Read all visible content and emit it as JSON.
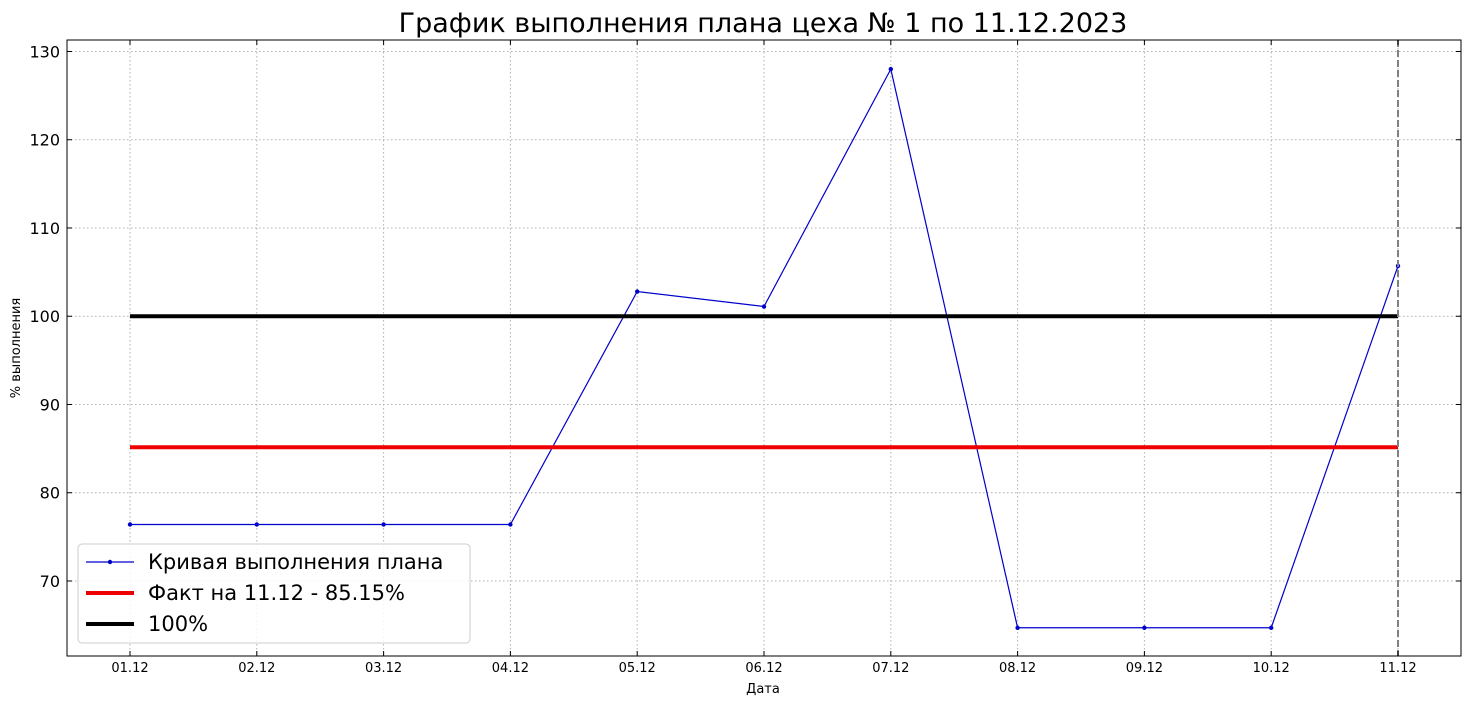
{
  "chart_data": {
    "type": "line",
    "title": "График выполнения плана цеха № 1 по 11.12.2023",
    "xlabel": "Дата",
    "ylabel": "% выполнения",
    "categories": [
      "01.12",
      "02.12",
      "03.12",
      "04.12",
      "05.12",
      "06.12",
      "07.12",
      "08.12",
      "09.12",
      "10.12",
      "11.12"
    ],
    "series": [
      {
        "name": "Кривая выполнения плана",
        "values": [
          76.4,
          76.4,
          76.4,
          76.4,
          102.8,
          101.1,
          128.0,
          64.7,
          64.7,
          64.7,
          105.7
        ],
        "color": "#0000cc",
        "style": "line-with-markers"
      },
      {
        "name": "Факт на 11.12 - 85.15%",
        "values": [
          85.15,
          85.15,
          85.15,
          85.15,
          85.15,
          85.15,
          85.15,
          85.15,
          85.15,
          85.15,
          85.15
        ],
        "color": "#ee0000",
        "style": "thick-line"
      },
      {
        "name": "100%",
        "values": [
          100,
          100,
          100,
          100,
          100,
          100,
          100,
          100,
          100,
          100,
          100
        ],
        "color": "#000000",
        "style": "thick-line"
      }
    ],
    "ylim": [
      61.5,
      131.3
    ],
    "yticks": [
      70,
      80,
      90,
      100,
      110,
      120,
      130
    ],
    "vline_at": "11.12",
    "vline_color": "#808080",
    "grid": true,
    "legend_position": "lower-left"
  }
}
